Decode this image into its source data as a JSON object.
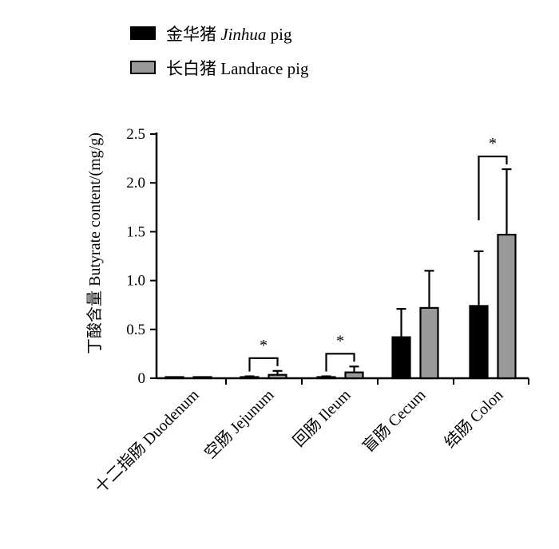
{
  "chart_data": {
    "type": "bar",
    "ylabel": "丁酸含量 Butyrate content/(mg/g)",
    "ylim": [
      0,
      2.5
    ],
    "yticks": [
      "0",
      "0.5",
      "1.0",
      "1.5",
      "2.0",
      "2.5"
    ],
    "categories": [
      "十二指肠 Duodenum",
      "空肠 Jejunum",
      "回肠 Ileum",
      "盲肠 Cecum",
      "结肠 Colon"
    ],
    "series": [
      {
        "name": "金华猪",
        "name_italic_part": "Jinhua",
        "name_suffix": "pig",
        "color": "#000000",
        "values": [
          0.005,
          0.01,
          0.005,
          0.42,
          0.74
        ],
        "errors": [
          0.0,
          0.01,
          0.015,
          0.29,
          0.56
        ]
      },
      {
        "name": "长白猪",
        "name_italic_part": "",
        "name_suffix": "Landrace pig",
        "color": "#999999",
        "values": [
          0.005,
          0.035,
          0.06,
          0.72,
          1.47
        ],
        "errors": [
          0.0,
          0.04,
          0.06,
          0.38,
          0.67
        ]
      }
    ],
    "significance": [
      "",
      "*",
      "*",
      "",
      "*"
    ],
    "grid": false,
    "legend_position": "top-left"
  }
}
